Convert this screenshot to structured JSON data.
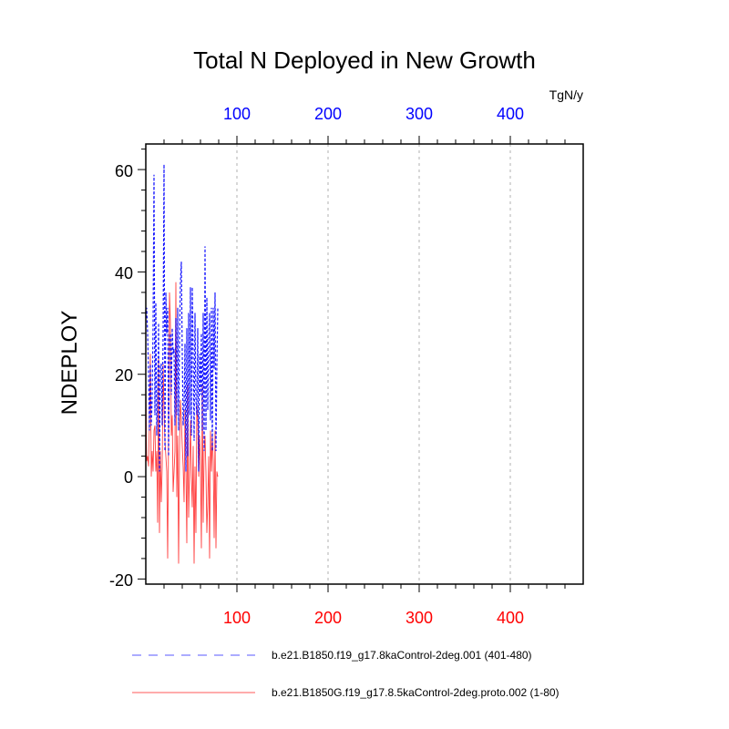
{
  "chart_data": {
    "type": "line",
    "title": "Total N Deployed in New Growth",
    "units": "TgN/y",
    "ylabel": "NDEPLOY",
    "xlim": [
      0,
      480
    ],
    "ylim": [
      -21,
      65
    ],
    "x_ticks_top": [
      "100",
      "200",
      "300",
      "400"
    ],
    "x_ticks_bottom": [
      "100",
      "200",
      "300",
      "400"
    ],
    "y_ticks": [
      "60",
      "40",
      "20",
      "0",
      "-20"
    ],
    "x_tick_values": [
      100,
      200,
      300,
      400
    ],
    "y_tick_values": [
      60,
      40,
      20,
      0,
      -20
    ],
    "vertical_grid": true,
    "legend_position": "bottom",
    "series": [
      {
        "name": "b.e21.B1850.f19_g17.8kaControl-2deg.001 (401-480)",
        "color": "#0000ff",
        "style": "dashed",
        "values": [
          31,
          33,
          28,
          20,
          9,
          22,
          10,
          15,
          30,
          59,
          12,
          34,
          8,
          16,
          30,
          1,
          22,
          22,
          10,
          28,
          61,
          5,
          36,
          28,
          33,
          4,
          27,
          28,
          16,
          29,
          24,
          25,
          10,
          31,
          12,
          33,
          9,
          27,
          38,
          42,
          24,
          10,
          14,
          26,
          1,
          29,
          4,
          32,
          12,
          37,
          8,
          37,
          24,
          7,
          32,
          15,
          12,
          29,
          1,
          24,
          16,
          28,
          9,
          32,
          5,
          45,
          9,
          35,
          13,
          27,
          32,
          11,
          33,
          5,
          33,
          21,
          36,
          5,
          22,
          33
        ]
      },
      {
        "name": "b.e21.B1850G.f19_g17.8.5kaControl-2deg.proto.002 (1-80)",
        "color": "#ff0000",
        "style": "solid",
        "values": [
          19,
          3,
          4,
          2,
          11,
          24,
          0,
          5,
          1,
          9,
          10,
          1,
          5,
          -9,
          23,
          -11,
          5,
          -5,
          2,
          22,
          13,
          7,
          4,
          1,
          -16,
          9,
          36,
          30,
          8,
          12,
          -3,
          1,
          5,
          38,
          -4,
          8,
          -17,
          5,
          15,
          11,
          6,
          2,
          -5,
          13,
          2,
          -13,
          18,
          -8,
          1,
          11,
          0,
          -6,
          6,
          -17,
          2,
          -11,
          14,
          11,
          0,
          8,
          2,
          -14,
          18,
          -9,
          5,
          8,
          1,
          -11,
          -5,
          4,
          -16,
          9,
          1,
          8,
          3,
          -12,
          9,
          -14,
          1,
          0
        ]
      }
    ]
  }
}
